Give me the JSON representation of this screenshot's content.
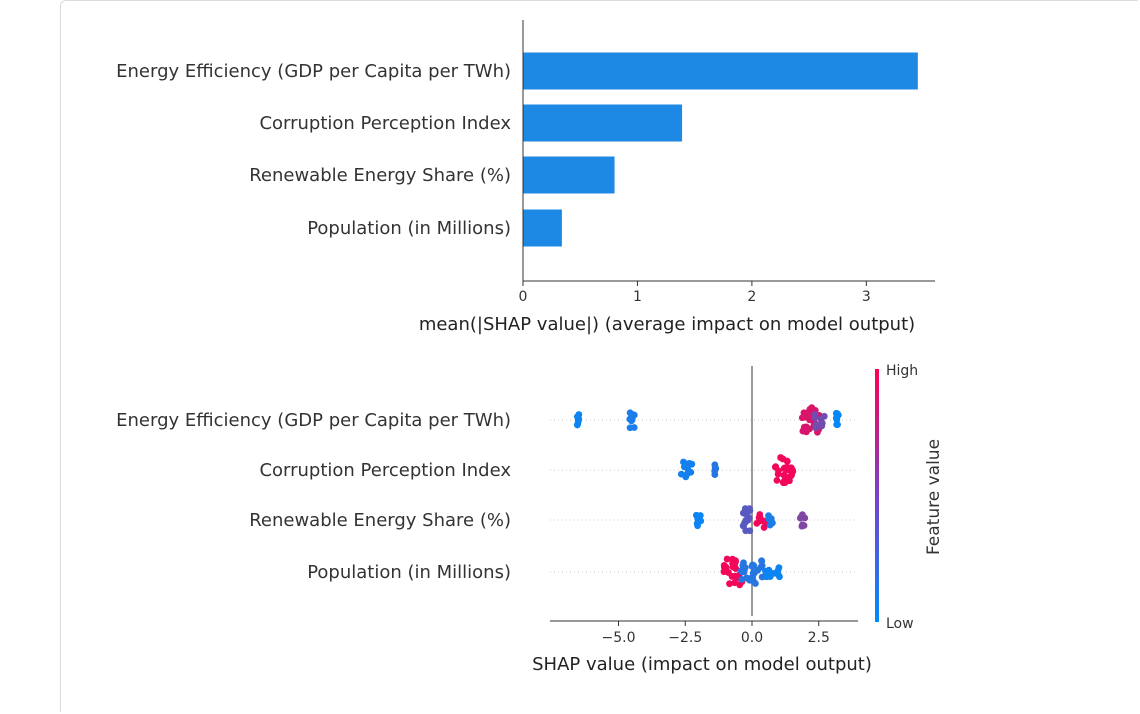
{
  "colors": {
    "bar": "#1e88e5",
    "low": "#008bfb",
    "high": "#ff0051",
    "axis": "#333333",
    "label": "#333333",
    "zero_line": "#999999",
    "dotted_row": "#cccccc"
  },
  "chart_data": [
    {
      "type": "bar",
      "orientation": "horizontal",
      "categories": [
        "Energy Efficiency (GDP per Capita per TWh)",
        "Corruption Perception Index",
        "Renewable Energy Share (%)",
        "Population (in Millions)"
      ],
      "values": [
        3.45,
        1.39,
        0.8,
        0.34
      ],
      "xlabel": "mean(|SHAP value|) (average impact on model output)",
      "xlim": [
        0,
        3.6
      ],
      "xticks": [
        "0",
        "1",
        "2",
        "3"
      ],
      "grid": false
    },
    {
      "type": "scatter",
      "subtype": "beeswarm",
      "categories": [
        "Energy Efficiency (GDP per Capita per TWh)",
        "Corruption Perception Index",
        "Renewable Energy Share (%)",
        "Population (in Millions)"
      ],
      "xlabel": "SHAP value (impact on model output)",
      "xlim": [
        -7.5,
        3.8
      ],
      "xticks": [
        "−5.0",
        "−2.5",
        "0.0",
        "2.5"
      ],
      "colorbar": {
        "label": "Feature value",
        "high": "High",
        "low": "Low"
      },
      "series": [
        {
          "category": "Energy Efficiency (GDP per Capita per TWh)",
          "clusters": [
            {
              "x": -6.5,
              "spread": 0.05,
              "n": 7,
              "feature_value": 0.05
            },
            {
              "x": -4.5,
              "spread": 0.1,
              "n": 10,
              "feature_value": 0.1
            },
            {
              "x": 2.2,
              "spread": 0.35,
              "n": 28,
              "feature_value": 0.85
            },
            {
              "x": 2.55,
              "spread": 0.2,
              "n": 10,
              "feature_value": 0.45
            },
            {
              "x": 3.2,
              "spread": 0.05,
              "n": 8,
              "feature_value": 0.02
            }
          ]
        },
        {
          "category": "Corruption Perception Index",
          "clusters": [
            {
              "x": -2.4,
              "spread": 0.25,
              "n": 10,
              "feature_value": 0.08
            },
            {
              "x": -1.35,
              "spread": 0.05,
              "n": 6,
              "feature_value": 0.15
            },
            {
              "x": 1.2,
              "spread": 0.35,
              "n": 26,
              "feature_value": 0.95
            }
          ]
        },
        {
          "category": "Renewable Energy Share (%)",
          "clusters": [
            {
              "x": -2.0,
              "spread": 0.1,
              "n": 8,
              "feature_value": 0.05
            },
            {
              "x": -0.2,
              "spread": 0.15,
              "n": 18,
              "feature_value": 0.35
            },
            {
              "x": 0.4,
              "spread": 0.3,
              "n": 10,
              "feature_value": 0.95
            },
            {
              "x": 0.7,
              "spread": 0.1,
              "n": 6,
              "feature_value": 0.1
            },
            {
              "x": 1.9,
              "spread": 0.1,
              "n": 7,
              "feature_value": 0.5
            }
          ]
        },
        {
          "category": "Population (in Millions)",
          "clusters": [
            {
              "x": -0.7,
              "spread": 0.35,
              "n": 26,
              "feature_value": 0.95
            },
            {
              "x": 0.1,
              "spread": 0.5,
              "n": 30,
              "feature_value": 0.15
            },
            {
              "x": 0.75,
              "spread": 0.3,
              "n": 10,
              "feature_value": 0.05
            }
          ]
        }
      ]
    }
  ]
}
